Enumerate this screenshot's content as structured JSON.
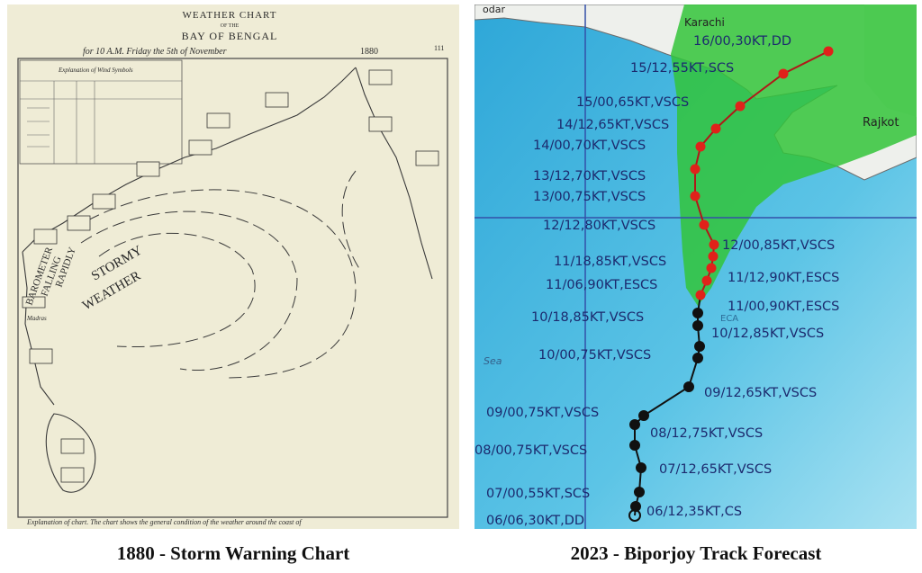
{
  "left_panel": {
    "header": {
      "title": "WEATHER CHART",
      "of_the": "OF THE",
      "region": "BAY OF BENGAL",
      "date": "for 10 A.M. Friday the 5th of November",
      "year": "1880",
      "page": "111"
    },
    "legend_title": "Explanation of Wind Symbols",
    "labels": [
      "STORMY",
      "WEATHER",
      "BAROMETER",
      "FALLING",
      "RAPIDLY",
      "Madras"
    ],
    "footer": "Explanation of chart. The chart shows the general condition of the weather around the coast of"
  },
  "right_panel": {
    "places": [
      "odar",
      "Karachi",
      "Rajkot",
      "Sea",
      "ECA"
    ],
    "track": [
      "16/00,30KT,DD",
      "15/12,55KT,SCS",
      "15/00,65KT,VSCS",
      "14/12,65KT,VSCS",
      "14/00,70KT,VSCS",
      "13/12,70KT,VSCS",
      "13/00,75KT,VSCS",
      "12/12,80KT,VSCS",
      "12/00,85KT,VSCS",
      "11/18,85KT,VSCS",
      "11/12,90KT,ESCS",
      "11/06,90KT,ESCS",
      "11/00,90KT,ESCS",
      "10/18,85KT,VSCS",
      "10/12,85KT,VSCS",
      "10/00,75KT,VSCS",
      "09/12,65KT,VSCS",
      "09/00,75KT,VSCS",
      "08/12,75KT,VSCS",
      "08/00,75KT,VSCS",
      "07/12,65KT,VSCS",
      "07/00,55KT,SCS",
      "06/06,30KT,DD",
      "06/12,35KT,CS"
    ]
  },
  "captions": [
    "1880 - Storm Warning Chart",
    "2023 - Biporjoy Track Forecast"
  ]
}
